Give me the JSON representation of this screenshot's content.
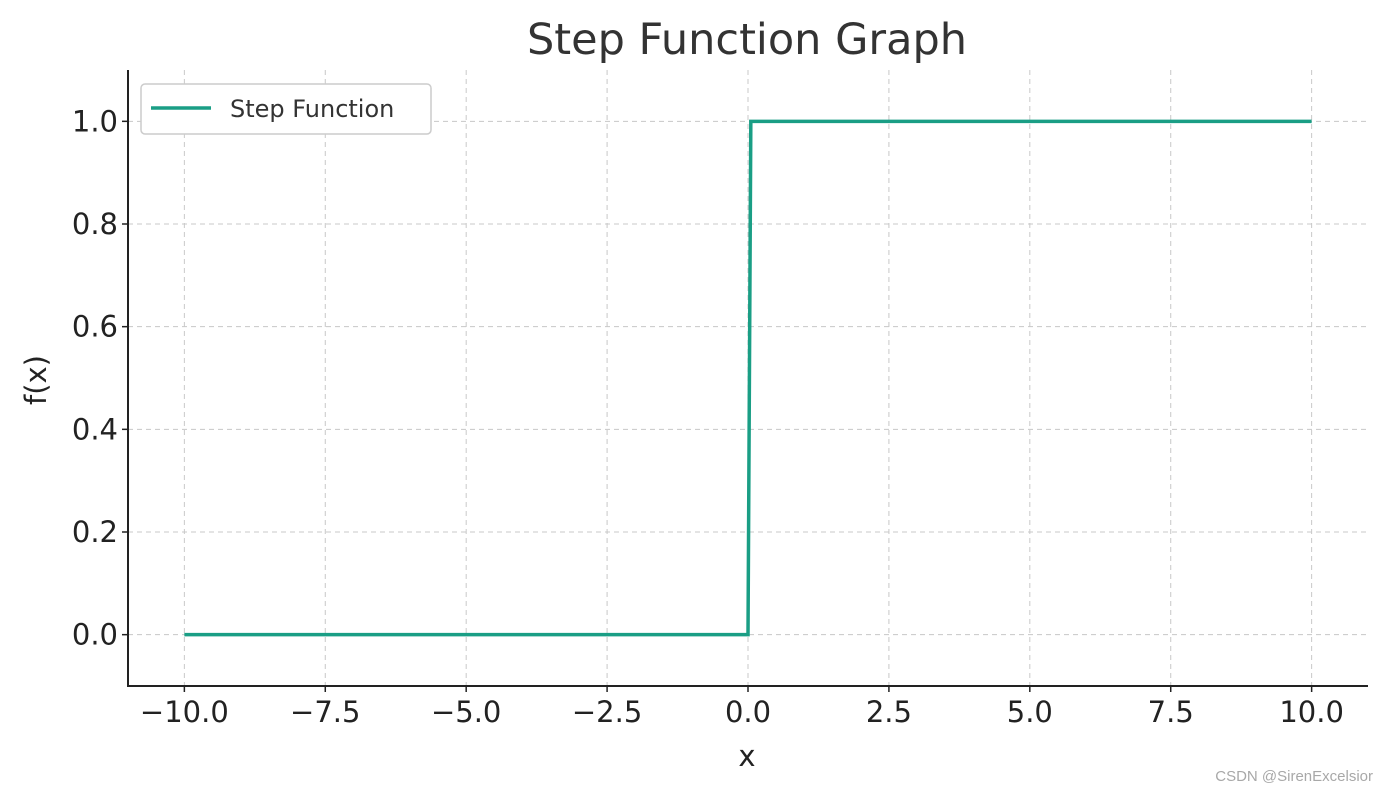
{
  "chart_data": {
    "type": "line",
    "title": "Step Function Graph",
    "xlabel": "x",
    "ylabel": "f(x)",
    "xlim": [
      -11,
      11
    ],
    "ylim": [
      -0.1,
      1.1
    ],
    "xticks": [
      -10,
      -7.5,
      -5,
      -2.5,
      0,
      2.5,
      5,
      7.5,
      10
    ],
    "xtick_labels": [
      "−10.0",
      "−7.5",
      "−5.0",
      "−2.5",
      "0.0",
      "2.5",
      "5.0",
      "7.5",
      "10.0"
    ],
    "yticks": [
      0,
      0.2,
      0.4,
      0.6,
      0.8,
      1.0
    ],
    "ytick_labels": [
      "0.0",
      "0.2",
      "0.4",
      "0.6",
      "0.8",
      "1.0"
    ],
    "grid": true,
    "legend_position": "top-left",
    "series": [
      {
        "name": "Step Function",
        "color": "#1a9e85",
        "x": [
          -10,
          0,
          0.05,
          10
        ],
        "y": [
          0,
          0,
          1,
          1
        ]
      }
    ]
  },
  "watermark": "CSDN @SirenExcelsior"
}
